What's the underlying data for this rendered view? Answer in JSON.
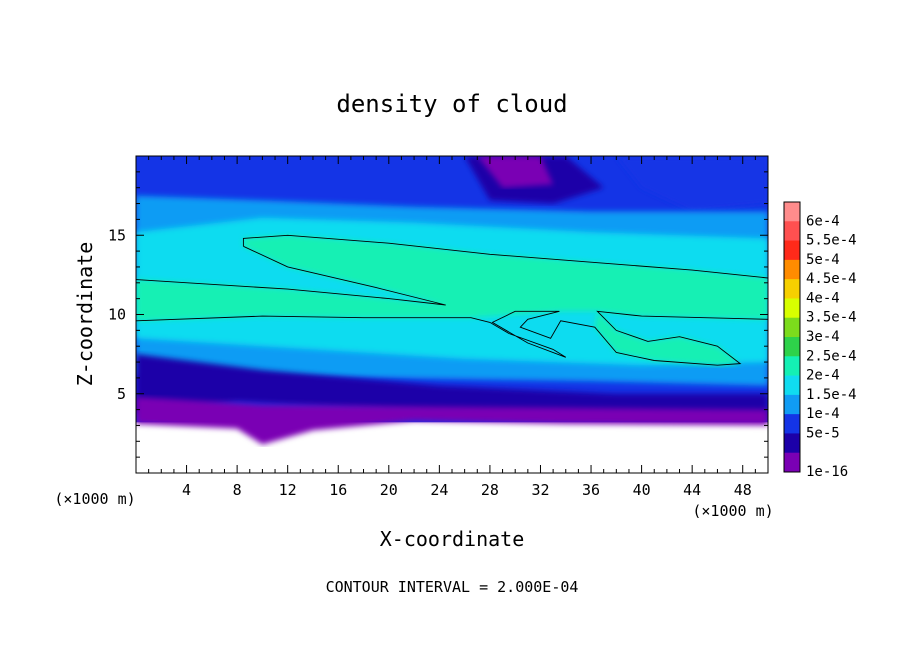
{
  "chart_data": {
    "type": "heatmap",
    "title": "density of cloud",
    "xlabel": "X-coordinate",
    "ylabel": "Z-coordinate",
    "x_unit": "(×1000 m)",
    "x_unit_right": "(×1000 m)",
    "xlim": [
      0,
      50
    ],
    "ylim": [
      0,
      20
    ],
    "x_ticks": [
      4,
      8,
      12,
      16,
      20,
      24,
      28,
      32,
      36,
      40,
      44,
      48
    ],
    "y_ticks": [
      5,
      10,
      15
    ],
    "footer": "CONTOUR INTERVAL = 2.000E-04",
    "contour_interval": 0.0002,
    "colorbar": {
      "labels": [
        "6e-4",
        "5.5e-4",
        "5e-4",
        "4.5e-4",
        "4e-4",
        "3.5e-4",
        "3e-4",
        "2.5e-4",
        "2e-4",
        "1.5e-4",
        "1e-4",
        "5e-5",
        "1e-16"
      ],
      "colors": [
        "#ff8c8c",
        "#ff5050",
        "#ff2a1a",
        "#ff8c00",
        "#f6d000",
        "#d8ff00",
        "#7cdc1c",
        "#2ed24a",
        "#14f0b4",
        "#10dcf0",
        "#109cf4",
        "#1434e6",
        "#1c00a8",
        "#7a00b4"
      ]
    },
    "regions": [
      {
        "name": "upper-low",
        "level": "5e-5",
        "points": [
          [
            26,
            20
          ],
          [
            34,
            20
          ],
          [
            37,
            18
          ],
          [
            33,
            17
          ],
          [
            28,
            17.2
          ]
        ]
      },
      {
        "name": "upper-core",
        "level": "1e-16",
        "points": [
          [
            27,
            20
          ],
          [
            32,
            20
          ],
          [
            33,
            18.2
          ],
          [
            29,
            18
          ]
        ]
      },
      {
        "name": "upper-right-band",
        "level": "1e-4",
        "points": [
          [
            38,
            20
          ],
          [
            50,
            20
          ],
          [
            50,
            17
          ],
          [
            44,
            16.5
          ],
          [
            40,
            18
          ]
        ]
      },
      {
        "name": "main-band-outer",
        "level": "1.5e-4",
        "points": [
          [
            0,
            17.5
          ],
          [
            10,
            17.2
          ],
          [
            22,
            16.8
          ],
          [
            36,
            16.5
          ],
          [
            50,
            16.5
          ],
          [
            50,
            5.5
          ],
          [
            36,
            5.8
          ],
          [
            20,
            6
          ],
          [
            0,
            6.2
          ]
        ]
      },
      {
        "name": "main-band-mid",
        "level": "2e-4",
        "points": [
          [
            0,
            15.2
          ],
          [
            10,
            16.1
          ],
          [
            22,
            15.8
          ],
          [
            36,
            15.2
          ],
          [
            50,
            14.8
          ],
          [
            50,
            7
          ],
          [
            40,
            6.8
          ],
          [
            26,
            7.2
          ],
          [
            10,
            8
          ],
          [
            0,
            8.5
          ]
        ]
      },
      {
        "name": "main-band-upper-contour",
        "level": "2.5e-4",
        "points": [
          [
            8.5,
            14.8
          ],
          [
            12,
            15
          ],
          [
            20,
            14.5
          ],
          [
            28,
            13.8
          ],
          [
            36,
            13.3
          ],
          [
            44,
            12.8
          ],
          [
            50,
            12.3
          ],
          [
            50,
            9.7
          ],
          [
            40,
            9.9
          ],
          [
            36.5,
            10.2
          ],
          [
            33.5,
            10.2
          ],
          [
            30,
            10
          ],
          [
            26.5,
            9.8
          ],
          [
            18,
            9.8
          ],
          [
            10,
            9.9
          ],
          [
            0,
            9.6
          ],
          [
            0,
            12.2
          ],
          [
            12,
            11.6
          ],
          [
            20,
            11
          ],
          [
            24.5,
            10.6
          ],
          [
            19,
            11.7
          ],
          [
            12,
            13
          ],
          [
            8.5,
            14.3
          ]
        ]
      },
      {
        "name": "lower-blue",
        "level": "5e-5",
        "points": [
          [
            0,
            7.5
          ],
          [
            10,
            6.5
          ],
          [
            24,
            5.5
          ],
          [
            38,
            5
          ],
          [
            50,
            5
          ],
          [
            50,
            3.4
          ],
          [
            40,
            3.4
          ],
          [
            24,
            3.8
          ],
          [
            8,
            4.5
          ],
          [
            0,
            3.7
          ]
        ]
      },
      {
        "name": "ground-fringe",
        "level": "1e-16",
        "points": [
          [
            0,
            4.8
          ],
          [
            10,
            4.3
          ],
          [
            22,
            4.2
          ],
          [
            36,
            4.1
          ],
          [
            50,
            4.0
          ],
          [
            50,
            3.0
          ],
          [
            34,
            3.1
          ],
          [
            22,
            3.3
          ],
          [
            14,
            2.7
          ],
          [
            10,
            1.8
          ],
          [
            8,
            2.8
          ],
          [
            0,
            3.1
          ]
        ]
      },
      {
        "name": "inner-right-lobe",
        "level": "2.5e-4",
        "points": [
          [
            36.5,
            10.2
          ],
          [
            38,
            9
          ],
          [
            40.5,
            8.3
          ],
          [
            43,
            8.6
          ],
          [
            46,
            8.0
          ],
          [
            47.8,
            6.9
          ],
          [
            46,
            6.8
          ],
          [
            41,
            7.1
          ],
          [
            38,
            7.6
          ],
          [
            36.3,
            9.2
          ]
        ]
      }
    ],
    "contours": [
      [
        [
          8.5,
          14.3
        ],
        [
          8.5,
          14.8
        ],
        [
          12,
          15
        ],
        [
          20,
          14.5
        ],
        [
          28,
          13.8
        ],
        [
          36,
          13.3
        ],
        [
          44,
          12.8
        ],
        [
          50,
          12.3
        ]
      ],
      [
        [
          0,
          12.2
        ],
        [
          12,
          11.6
        ],
        [
          20,
          11
        ],
        [
          24.5,
          10.6
        ],
        [
          19,
          11.7
        ],
        [
          12,
          13
        ],
        [
          8.5,
          14.3
        ]
      ],
      [
        [
          0,
          9.6
        ],
        [
          10,
          9.9
        ],
        [
          18,
          9.8
        ],
        [
          26.5,
          9.8
        ],
        [
          28,
          9.5
        ],
        [
          29.5,
          8.8
        ],
        [
          33,
          7.8
        ],
        [
          34,
          7.3
        ],
        [
          31,
          8.2
        ],
        [
          28.2,
          9.5
        ],
        [
          30,
          10.2
        ],
        [
          33.5,
          10.2
        ],
        [
          31,
          9.7
        ],
        [
          30.4,
          9.2
        ],
        [
          32.8,
          8.5
        ],
        [
          33.6,
          9.6
        ],
        [
          36.3,
          9.2
        ],
        [
          38,
          7.6
        ],
        [
          41,
          7.1
        ],
        [
          46,
          6.8
        ],
        [
          47.8,
          6.9
        ],
        [
          46,
          8.0
        ],
        [
          43,
          8.6
        ],
        [
          40.5,
          8.3
        ],
        [
          38,
          9
        ],
        [
          36.5,
          10.2
        ],
        [
          40,
          9.9
        ],
        [
          50,
          9.7
        ]
      ]
    ]
  }
}
